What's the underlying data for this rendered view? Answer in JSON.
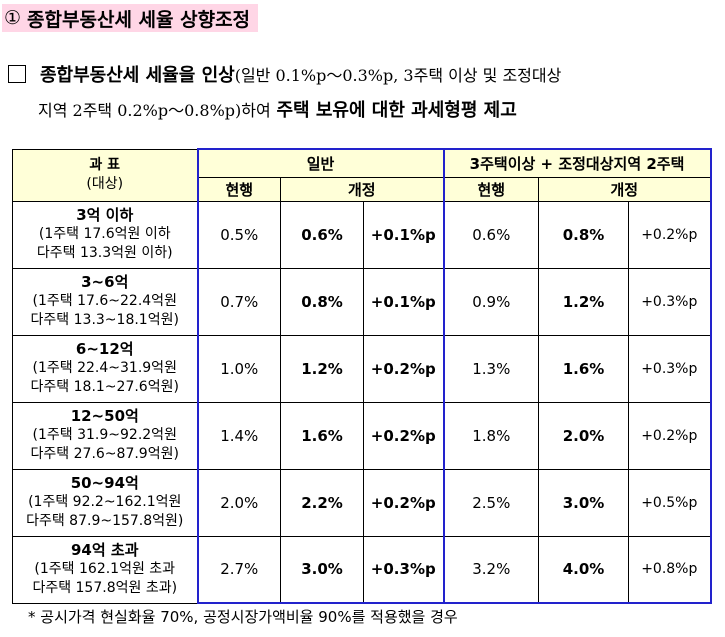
{
  "heading": {
    "number": "①",
    "title": "종합부동산세 세율 상향조정"
  },
  "para": {
    "bold1": "종합부동산세 세율을 인상",
    "normal1": "(일반 0.1%p～0.3%p, 3주택 이상 및 조정대상",
    "normal2": "지역 2주택 0.2%p～0.8%p)하여",
    "bold2": "주택 보유에 대한 과세형평 제고"
  },
  "table": {
    "col_tax_base": "과  표",
    "col_tax_base_sub": "(대상)",
    "group_general": "일반",
    "group_multi": "3주택이상 + 조정대상지역 2주택",
    "current": "현행",
    "revised": "개정",
    "rows": [
      {
        "range": "3억 이하",
        "line1": "(1주택 17.6억원 이하",
        "line2": "다주택 13.3억원 이하)",
        "g_cur": "0.5%",
        "g_new": "0.6%",
        "g_diff": "+0.1%p",
        "m_cur": "0.6%",
        "m_new": "0.8%",
        "m_diff": "+0.2%p"
      },
      {
        "range": "3~6억",
        "line1": "(1주택 17.6~22.4억원",
        "line2": "다주택 13.3~18.1억원)",
        "g_cur": "0.7%",
        "g_new": "0.8%",
        "g_diff": "+0.1%p",
        "m_cur": "0.9%",
        "m_new": "1.2%",
        "m_diff": "+0.3%p"
      },
      {
        "range": "6~12억",
        "line1": "(1주택 22.4~31.9억원",
        "line2": "다주택 18.1~27.6억원)",
        "g_cur": "1.0%",
        "g_new": "1.2%",
        "g_diff": "+0.2%p",
        "m_cur": "1.3%",
        "m_new": "1.6%",
        "m_diff": "+0.3%p"
      },
      {
        "range": "12~50억",
        "line1": "(1주택 31.9~92.2억원",
        "line2": "다주택 27.6~87.9억원)",
        "g_cur": "1.4%",
        "g_new": "1.6%",
        "g_diff": "+0.2%p",
        "m_cur": "1.8%",
        "m_new": "2.0%",
        "m_diff": "+0.2%p"
      },
      {
        "range": "50~94억",
        "line1": "(1주택 92.2~162.1억원",
        "line2": "다주택 87.9~157.8억원)",
        "g_cur": "2.0%",
        "g_new": "2.2%",
        "g_diff": "+0.2%p",
        "m_cur": "2.5%",
        "m_new": "3.0%",
        "m_diff": "+0.5%p"
      },
      {
        "range": "94억 초과",
        "line1": "(1주택 162.1억원 초과",
        "line2": "다주택 157.8억원 초과)",
        "g_cur": "2.7%",
        "g_new": "3.0%",
        "g_diff": "+0.3%p",
        "m_cur": "3.2%",
        "m_new": "4.0%",
        "m_diff": "+0.8%p"
      }
    ]
  },
  "note": "* 공시가격 현실화율 70%, 공정시장가액비율 90%를 적용했을 경우"
}
